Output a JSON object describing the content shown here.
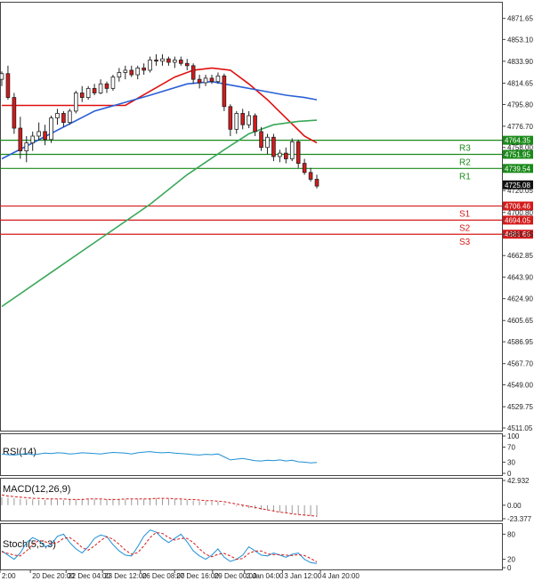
{
  "chart_data": {
    "type": "candlestick",
    "price_axis": {
      "ticks": [
        "4871.65",
        "4853.10",
        "4833.90",
        "4814.65",
        "4795.80",
        "4776.70",
        "4758.00",
        "4720.05",
        "4700.80",
        "4681.65",
        "4662.85",
        "4643.90",
        "4624.90",
        "4605.65",
        "4586.95",
        "4567.70",
        "4549.00",
        "4529.75",
        "4511.05"
      ],
      "tick_values": [
        4871.65,
        4853.1,
        4833.9,
        4814.65,
        4795.8,
        4776.7,
        4758.0,
        4720.05,
        4700.8,
        4681.65,
        4662.85,
        4643.9,
        4624.9,
        4605.65,
        4586.95,
        4567.7,
        4549.0,
        4529.75,
        4511.05
      ],
      "range": [
        4511.05,
        4880.0
      ]
    },
    "time_axis": {
      "labels": [
        "2:00",
        "20 Dec 20:00",
        "22 Dec 04:00",
        "23 Dec 12:00",
        "26 Dec 08:00",
        "27 Dec 16:00",
        "29 Dec 00:00",
        "2 Jan 04:00",
        "3 Jan 12:00",
        "4 Jan 20:00"
      ]
    },
    "levels": [
      {
        "name": "R3",
        "value": 4764.35,
        "label": "4764.35",
        "color": "#1a8a1a"
      },
      {
        "name": "R2",
        "value": 4751.95,
        "label": "4751.95",
        "color": "#1a8a1a"
      },
      {
        "name": "R1",
        "value": 4739.54,
        "label": "4739.54",
        "color": "#1a8a1a"
      },
      {
        "name": "S1",
        "value": 4706.46,
        "label": "4706.46",
        "color": "#d41a1a"
      },
      {
        "name": "S2",
        "value": 4694.05,
        "label": "4694.05",
        "color": "#d41a1a"
      },
      {
        "name": "S3",
        "value": 4681.65,
        "label": "4681.65",
        "color": "#d41a1a"
      }
    ],
    "current_price": {
      "value": 4725.08,
      "label": "4725.08"
    },
    "candles": [
      [
        4818,
        4825,
        4812,
        4823
      ],
      [
        4823,
        4830,
        4800,
        4802
      ],
      [
        4802,
        4806,
        4770,
        4775
      ],
      [
        4775,
        4785,
        4748,
        4755
      ],
      [
        4755,
        4768,
        4745,
        4762
      ],
      [
        4762,
        4772,
        4755,
        4768
      ],
      [
        4768,
        4780,
        4764,
        4772
      ],
      [
        4772,
        4778,
        4760,
        4765
      ],
      [
        4765,
        4786,
        4762,
        4784
      ],
      [
        4784,
        4792,
        4778,
        4788
      ],
      [
        4788,
        4790,
        4776,
        4780
      ],
      [
        4780,
        4792,
        4778,
        4790
      ],
      [
        4790,
        4808,
        4788,
        4806
      ],
      [
        4806,
        4812,
        4798,
        4802
      ],
      [
        4802,
        4812,
        4800,
        4810
      ],
      [
        4810,
        4814,
        4804,
        4806
      ],
      [
        4806,
        4818,
        4805,
        4814
      ],
      [
        4814,
        4816,
        4806,
        4810
      ],
      [
        4810,
        4822,
        4808,
        4820
      ],
      [
        4820,
        4828,
        4816,
        4824
      ],
      [
        4824,
        4830,
        4818,
        4826
      ],
      [
        4826,
        4830,
        4820,
        4822
      ],
      [
        4822,
        4830,
        4818,
        4828
      ],
      [
        4828,
        4832,
        4822,
        4826
      ],
      [
        4826,
        4838,
        4824,
        4835
      ],
      [
        4835,
        4840,
        4830,
        4834
      ],
      [
        4834,
        4840,
        4830,
        4836
      ],
      [
        4836,
        4838,
        4830,
        4833
      ],
      [
        4833,
        4838,
        4828,
        4835
      ],
      [
        4835,
        4838,
        4830,
        4832
      ],
      [
        4832,
        4836,
        4826,
        4830
      ],
      [
        4830,
        4832,
        4814,
        4818
      ],
      [
        4818,
        4822,
        4810,
        4815
      ],
      [
        4815,
        4822,
        4812,
        4819
      ],
      [
        4819,
        4822,
        4814,
        4816
      ],
      [
        4816,
        4824,
        4814,
        4821
      ],
      [
        4821,
        4823,
        4790,
        4794
      ],
      [
        4794,
        4796,
        4768,
        4774
      ],
      [
        4774,
        4790,
        4770,
        4788
      ],
      [
        4788,
        4792,
        4774,
        4778
      ],
      [
        4778,
        4790,
        4775,
        4786
      ],
      [
        4786,
        4788,
        4768,
        4772
      ],
      [
        4772,
        4776,
        4755,
        4758
      ],
      [
        4758,
        4770,
        4752,
        4767
      ],
      [
        4767,
        4770,
        4746,
        4750
      ],
      [
        4750,
        4756,
        4745,
        4753
      ],
      [
        4753,
        4758,
        4744,
        4748
      ],
      [
        4748,
        4766,
        4746,
        4763
      ],
      [
        4763,
        4765,
        4740,
        4744
      ],
      [
        4744,
        4748,
        4734,
        4736
      ],
      [
        4736,
        4740,
        4728,
        4730
      ],
      [
        4730,
        4734,
        4722,
        4724
      ]
    ],
    "moving_averages": [
      {
        "color": "#e01010",
        "points": [
          [
            0,
            4795
          ],
          [
            20,
            4795
          ],
          [
            28,
            4820
          ],
          [
            31,
            4826
          ],
          [
            34,
            4828
          ],
          [
            37,
            4826
          ],
          [
            40,
            4814
          ],
          [
            43,
            4800
          ],
          [
            46,
            4784
          ],
          [
            49,
            4768
          ],
          [
            51,
            4762
          ]
        ]
      },
      {
        "color": "#2a5fd6",
        "points": [
          [
            0,
            4748
          ],
          [
            15,
            4790
          ],
          [
            24,
            4804
          ],
          [
            30,
            4814
          ],
          [
            34,
            4816
          ],
          [
            38,
            4812
          ],
          [
            42,
            4808
          ],
          [
            46,
            4804
          ],
          [
            49,
            4802
          ],
          [
            51,
            4800
          ]
        ]
      },
      {
        "color": "#3aa85a",
        "points": [
          [
            0,
            4618
          ],
          [
            8,
            4648
          ],
          [
            16,
            4678
          ],
          [
            24,
            4708
          ],
          [
            30,
            4734
          ],
          [
            36,
            4756
          ],
          [
            40,
            4770
          ],
          [
            44,
            4778
          ],
          [
            48,
            4781
          ],
          [
            51,
            4782
          ]
        ]
      }
    ],
    "indicators": [
      {
        "name": "RSI(14)",
        "axis_ticks": [
          "100",
          "70",
          "30",
          "0"
        ],
        "tick_values": [
          100,
          70,
          30,
          0
        ],
        "range": [
          0,
          100
        ],
        "values": [
          52,
          50,
          49,
          51,
          53,
          50,
          52,
          54,
          53,
          55,
          54,
          52,
          53,
          55,
          54,
          53,
          52,
          54,
          56,
          55,
          54,
          52,
          55,
          57,
          58,
          56,
          55,
          56,
          54,
          53,
          52,
          50,
          49,
          51,
          50,
          52,
          44,
          36,
          38,
          40,
          37,
          34,
          33,
          35,
          34,
          36,
          33,
          35,
          31,
          30,
          28,
          29
        ]
      },
      {
        "name": "MACD(12,26,9)",
        "axis_ticks": [
          "42.932",
          "0.00",
          "-23.377"
        ],
        "tick_values": [
          42.932,
          0,
          -23.377
        ],
        "range": [
          -23.377,
          42.932
        ],
        "histogram": [
          14,
          13,
          12,
          11,
          10,
          10,
          9,
          9,
          10,
          10,
          9,
          9,
          10,
          11,
          11,
          10,
          10,
          10,
          11,
          11,
          10,
          10,
          11,
          11,
          12,
          12,
          11,
          11,
          11,
          10,
          9,
          8,
          7,
          7,
          6,
          6,
          3,
          0,
          -2,
          -3,
          -5,
          -6,
          -8,
          -9,
          -11,
          -12,
          -13,
          -15,
          -16,
          -18,
          -19,
          -20
        ],
        "signal": [
          18,
          16,
          15,
          14,
          13,
          12,
          12,
          11,
          11,
          11,
          11,
          10,
          10,
          10,
          11,
          11,
          11,
          10,
          10,
          10,
          11,
          11,
          11,
          11,
          11,
          12,
          12,
          12,
          11,
          11,
          10,
          10,
          9,
          8,
          8,
          7,
          6,
          4,
          2,
          0,
          -2,
          -4,
          -6,
          -8,
          -10,
          -12,
          -13,
          -15,
          -16,
          -17,
          -18,
          -19
        ]
      },
      {
        "name": "Stoch(5,5,3)",
        "axis_ticks": [
          "80",
          "20",
          "0"
        ],
        "tick_values": [
          80,
          20,
          0
        ],
        "range": [
          0,
          100
        ],
        "k": [
          40,
          30,
          20,
          35,
          60,
          72,
          65,
          50,
          55,
          75,
          80,
          60,
          45,
          35,
          50,
          70,
          78,
          74,
          55,
          40,
          30,
          28,
          50,
          75,
          90,
          85,
          70,
          60,
          70,
          80,
          62,
          40,
          28,
          20,
          30,
          45,
          25,
          15,
          20,
          30,
          50,
          40,
          30,
          28,
          35,
          30,
          25,
          32,
          35,
          20,
          12,
          10
        ],
        "d": [
          38,
          34,
          30,
          28,
          40,
          55,
          65,
          62,
          57,
          60,
          70,
          72,
          62,
          48,
          42,
          52,
          65,
          74,
          68,
          56,
          42,
          32,
          36,
          52,
          72,
          84,
          82,
          72,
          66,
          70,
          70,
          60,
          45,
          32,
          26,
          32,
          34,
          28,
          20,
          22,
          34,
          40,
          40,
          33,
          31,
          31,
          30,
          29,
          31,
          29,
          22,
          14
        ]
      }
    ]
  }
}
